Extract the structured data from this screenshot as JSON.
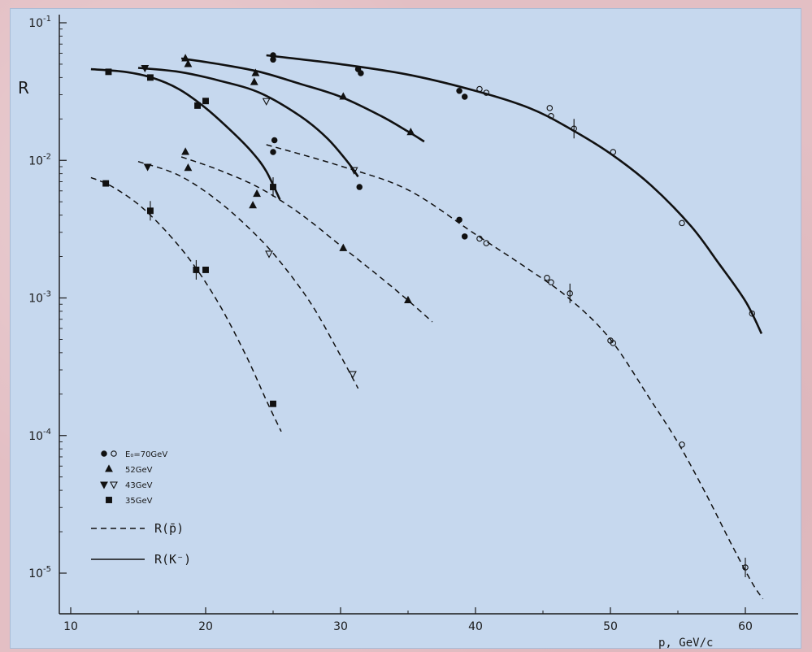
{
  "chart_data": {
    "type": "scatter",
    "title": "",
    "xlabel": "p, GeV/c",
    "ylabel": "R",
    "xlim": [
      10,
      64
    ],
    "ylim": [
      6e-06,
      0.1
    ],
    "yscale": "log",
    "grid": false,
    "x_ticks": [
      {
        "value": 10,
        "label": "10"
      },
      {
        "value": 20,
        "label": "20"
      },
      {
        "value": 30,
        "label": "30"
      },
      {
        "value": 40,
        "label": "40"
      },
      {
        "value": 50,
        "label": "50"
      },
      {
        "value": 60,
        "label": "60"
      }
    ],
    "y_ticks": [
      {
        "value": 0.1,
        "base": "10",
        "exp": "-1"
      },
      {
        "value": 0.01,
        "base": "10",
        "exp": "-2"
      },
      {
        "value": 0.001,
        "base": "10",
        "exp": "-3"
      },
      {
        "value": 0.0001,
        "base": "10",
        "exp": "-4"
      },
      {
        "value": 1e-05,
        "base": "10",
        "exp": "-5"
      }
    ],
    "legend": {
      "position": "bottom-left",
      "entries": [
        {
          "key": "E70",
          "symbol": "●,○",
          "text": "E₀=70GeV"
        },
        {
          "key": "E52",
          "symbol": "▲",
          "text": "52GeV"
        },
        {
          "key": "E43",
          "symbol": "▼,▽",
          "text": "43GeV"
        },
        {
          "key": "E35",
          "symbol": "■",
          "text": "35GeV"
        }
      ],
      "curves": [
        {
          "style": "dashed",
          "text": "R(p̄)"
        },
        {
          "style": "solid",
          "text": "R(K⁻)"
        }
      ]
    },
    "curves": [
      {
        "name": "K- 35GeV",
        "style": "solid",
        "x": [
          11.5,
          14,
          16,
          18,
          20,
          22,
          23.5,
          24.5,
          25.5
        ],
        "y": [
          0.046,
          0.044,
          0.04,
          0.033,
          0.024,
          0.016,
          0.0113,
          0.0083,
          0.0052
        ]
      },
      {
        "name": "K- 43GeV",
        "style": "solid",
        "x": [
          15,
          18,
          21,
          24,
          27,
          29,
          30.5,
          31.3
        ],
        "y": [
          0.047,
          0.044,
          0.038,
          0.031,
          0.021,
          0.0145,
          0.0098,
          0.0076
        ]
      },
      {
        "name": "K- 52GeV",
        "style": "solid",
        "x": [
          18.2,
          21,
          24,
          27,
          30,
          33,
          35,
          36.2
        ],
        "y": [
          0.055,
          0.05,
          0.044,
          0.036,
          0.029,
          0.021,
          0.0162,
          0.0137
        ]
      },
      {
        "name": "K- 70GeV",
        "style": "solid",
        "x": [
          24.5,
          30,
          35,
          40,
          44,
          47,
          50,
          53,
          56,
          58,
          60,
          61.2
        ],
        "y": [
          0.058,
          0.05,
          0.042,
          0.032,
          0.024,
          0.017,
          0.0112,
          0.0066,
          0.0033,
          0.0018,
          0.00095,
          0.00055
        ]
      },
      {
        "name": "pbar 35GeV",
        "style": "dashed",
        "x": [
          11.5,
          13,
          15,
          17,
          19,
          21,
          23,
          24.5,
          25.6
        ],
        "y": [
          0.0075,
          0.0065,
          0.0048,
          0.0031,
          0.0018,
          0.0009,
          0.00038,
          0.00018,
          0.000107
        ]
      },
      {
        "name": "pbar 43GeV",
        "style": "dashed",
        "x": [
          15,
          18,
          21,
          24,
          26,
          28,
          30,
          31.3
        ],
        "y": [
          0.0098,
          0.0078,
          0.005,
          0.0027,
          0.0016,
          0.00085,
          0.00038,
          0.00022
        ]
      },
      {
        "name": "pbar 52GeV",
        "style": "dashed",
        "x": [
          18.2,
          21,
          24,
          27,
          30,
          33,
          35,
          36.8
        ],
        "y": [
          0.0106,
          0.0085,
          0.0063,
          0.0041,
          0.0024,
          0.0014,
          0.00096,
          0.00067
        ]
      },
      {
        "name": "pbar 70GeV",
        "style": "dashed",
        "x": [
          24.5,
          30,
          35,
          40,
          44,
          47,
          50,
          53,
          55,
          57,
          59,
          60.5,
          61.3
        ],
        "y": [
          0.013,
          0.0091,
          0.0061,
          0.0029,
          0.0016,
          0.00098,
          0.0005,
          0.00018,
          8.9e-05,
          3.9e-05,
          1.6e-05,
          8.5e-06,
          6.5e-06
        ]
      }
    ],
    "series": [
      {
        "key": "E70",
        "marker": "circle",
        "points": [
          {
            "x": 25,
            "y": 0.058,
            "filled": true
          },
          {
            "x": 25,
            "y": 0.054,
            "filled": true
          },
          {
            "x": 31.3,
            "y": 0.046,
            "filled": true
          },
          {
            "x": 31.5,
            "y": 0.043,
            "filled": true
          },
          {
            "x": 38.8,
            "y": 0.032,
            "filled": true
          },
          {
            "x": 39.2,
            "y": 0.029,
            "filled": true
          },
          {
            "x": 40.3,
            "y": 0.033,
            "filled": false
          },
          {
            "x": 40.8,
            "y": 0.031,
            "filled": false
          },
          {
            "x": 45.5,
            "y": 0.024,
            "filled": false
          },
          {
            "x": 45.6,
            "y": 0.021,
            "filled": false
          },
          {
            "x": 47.3,
            "y": 0.017,
            "filled": false,
            "err": true
          },
          {
            "x": 50.2,
            "y": 0.0115,
            "filled": false
          },
          {
            "x": 55.3,
            "y": 0.0035,
            "filled": false
          },
          {
            "x": 60.5,
            "y": 0.00077,
            "filled": false
          },
          {
            "x": 25.1,
            "y": 0.014,
            "filled": true
          },
          {
            "x": 25,
            "y": 0.0115,
            "filled": true
          },
          {
            "x": 31.4,
            "y": 0.0064,
            "filled": true
          },
          {
            "x": 38.8,
            "y": 0.0037,
            "filled": true
          },
          {
            "x": 39.2,
            "y": 0.0028,
            "filled": true
          },
          {
            "x": 40.3,
            "y": 0.0027,
            "filled": false
          },
          {
            "x": 40.8,
            "y": 0.0025,
            "filled": false
          },
          {
            "x": 45.3,
            "y": 0.0014,
            "filled": false
          },
          {
            "x": 45.6,
            "y": 0.0013,
            "filled": false
          },
          {
            "x": 47.0,
            "y": 0.00108,
            "filled": false,
            "err": true
          },
          {
            "x": 50.0,
            "y": 0.00049,
            "filled": false
          },
          {
            "x": 50.2,
            "y": 0.00047,
            "filled": false
          },
          {
            "x": 55.3,
            "y": 8.6e-05,
            "filled": false
          },
          {
            "x": 60.0,
            "y": 1.1e-05,
            "filled": false,
            "err": true
          }
        ]
      },
      {
        "key": "E52",
        "marker": "triangle-up",
        "points": [
          {
            "x": 18.5,
            "y": 0.055,
            "filled": true
          },
          {
            "x": 18.7,
            "y": 0.05,
            "filled": true
          },
          {
            "x": 23.7,
            "y": 0.043,
            "filled": true
          },
          {
            "x": 23.6,
            "y": 0.037,
            "filled": true
          },
          {
            "x": 30.2,
            "y": 0.029,
            "filled": true
          },
          {
            "x": 35.2,
            "y": 0.016,
            "filled": true
          },
          {
            "x": 18.5,
            "y": 0.0115,
            "filled": true
          },
          {
            "x": 18.7,
            "y": 0.0088,
            "filled": true
          },
          {
            "x": 23.8,
            "y": 0.0057,
            "filled": true
          },
          {
            "x": 23.5,
            "y": 0.0047,
            "filled": true
          },
          {
            "x": 30.2,
            "y": 0.0023,
            "filled": true
          },
          {
            "x": 35.0,
            "y": 0.00096,
            "filled": true
          }
        ]
      },
      {
        "key": "E43",
        "marker": "triangle-down",
        "points": [
          {
            "x": 15.5,
            "y": 0.047,
            "filled": true
          },
          {
            "x": 24.5,
            "y": 0.027,
            "filled": false
          },
          {
            "x": 31.0,
            "y": 0.0085,
            "filled": false
          },
          {
            "x": 15.7,
            "y": 0.009,
            "filled": true
          },
          {
            "x": 24.7,
            "y": 0.0021,
            "filled": false
          },
          {
            "x": 30.9,
            "y": 0.00028,
            "filled": false
          }
        ]
      },
      {
        "key": "E35",
        "marker": "square",
        "points": [
          {
            "x": 12.8,
            "y": 0.044,
            "filled": true
          },
          {
            "x": 15.9,
            "y": 0.04,
            "filled": true
          },
          {
            "x": 19.4,
            "y": 0.025,
            "filled": true
          },
          {
            "x": 20.0,
            "y": 0.027,
            "filled": true
          },
          {
            "x": 25.0,
            "y": 0.0064,
            "filled": true,
            "err": true
          },
          {
            "x": 12.6,
            "y": 0.0068,
            "filled": true
          },
          {
            "x": 15.9,
            "y": 0.0043,
            "filled": true,
            "err": true
          },
          {
            "x": 19.3,
            "y": 0.0016,
            "filled": true,
            "err": true
          },
          {
            "x": 20.0,
            "y": 0.0016,
            "filled": true
          },
          {
            "x": 25.0,
            "y": 0.00017,
            "filled": true
          }
        ]
      }
    ]
  }
}
